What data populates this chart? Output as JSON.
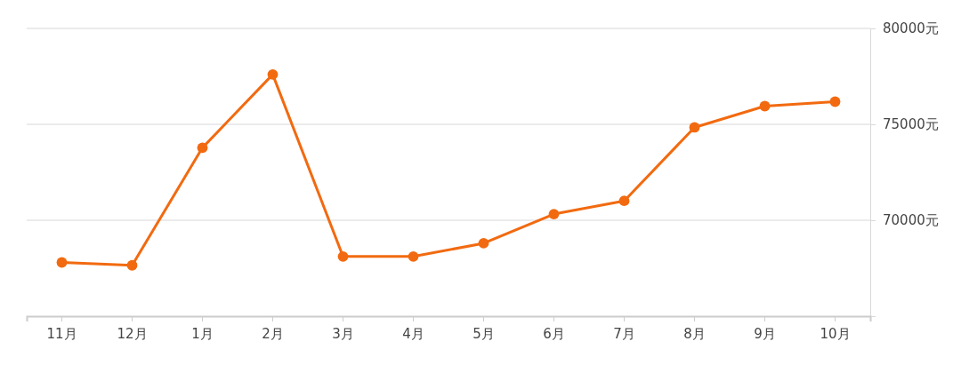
{
  "chart_data": {
    "type": "line",
    "categories": [
      "11月",
      "12月",
      "1月",
      "2月",
      "3月",
      "4月",
      "5月",
      "6月",
      "7月",
      "8月",
      "9月",
      "10月"
    ],
    "series": [
      {
        "color": "#f26a10",
        "values": [
          67800,
          67650,
          73780,
          77600,
          68110,
          68110,
          68800,
          70320,
          71010,
          74840,
          75950,
          76180
        ]
      }
    ],
    "ylim": [
      65000,
      80000
    ],
    "yticks": [
      {
        "value": 70000,
        "label": "70000元"
      },
      {
        "value": 75000,
        "label": "75000元"
      },
      {
        "value": 80000,
        "label": "80000元"
      }
    ],
    "grid": "y",
    "marker": "circle",
    "line_style": "solid"
  }
}
